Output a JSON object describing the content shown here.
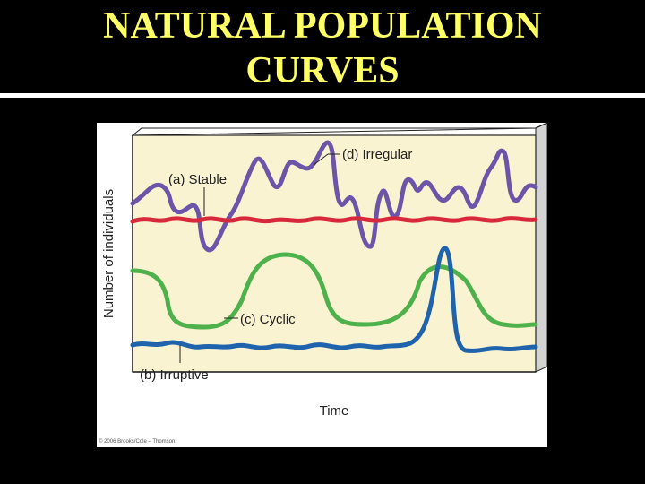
{
  "slide": {
    "title_line1": "NATURAL POPULATION",
    "title_line2": "CURVES"
  },
  "figure": {
    "y_axis_label": "Number of individuals",
    "x_axis_label": "Time",
    "copyright": "© 2006 Brooks/Cole – Thomson",
    "curves": [
      {
        "id": "stable",
        "label": "(a) Stable",
        "color": "#d8283c"
      },
      {
        "id": "irruptive",
        "label": "(b) Irruptive",
        "color": "#1f63ad"
      },
      {
        "id": "cyclic",
        "label": "(c) Cyclic",
        "color": "#4fb14b"
      },
      {
        "id": "irregular",
        "label": "(d) Irregular",
        "color": "#6c54a8"
      }
    ],
    "colors": {
      "panel_face": "#faf3d2",
      "panel_side": "#d3d3d3",
      "frame": "#222222"
    }
  }
}
